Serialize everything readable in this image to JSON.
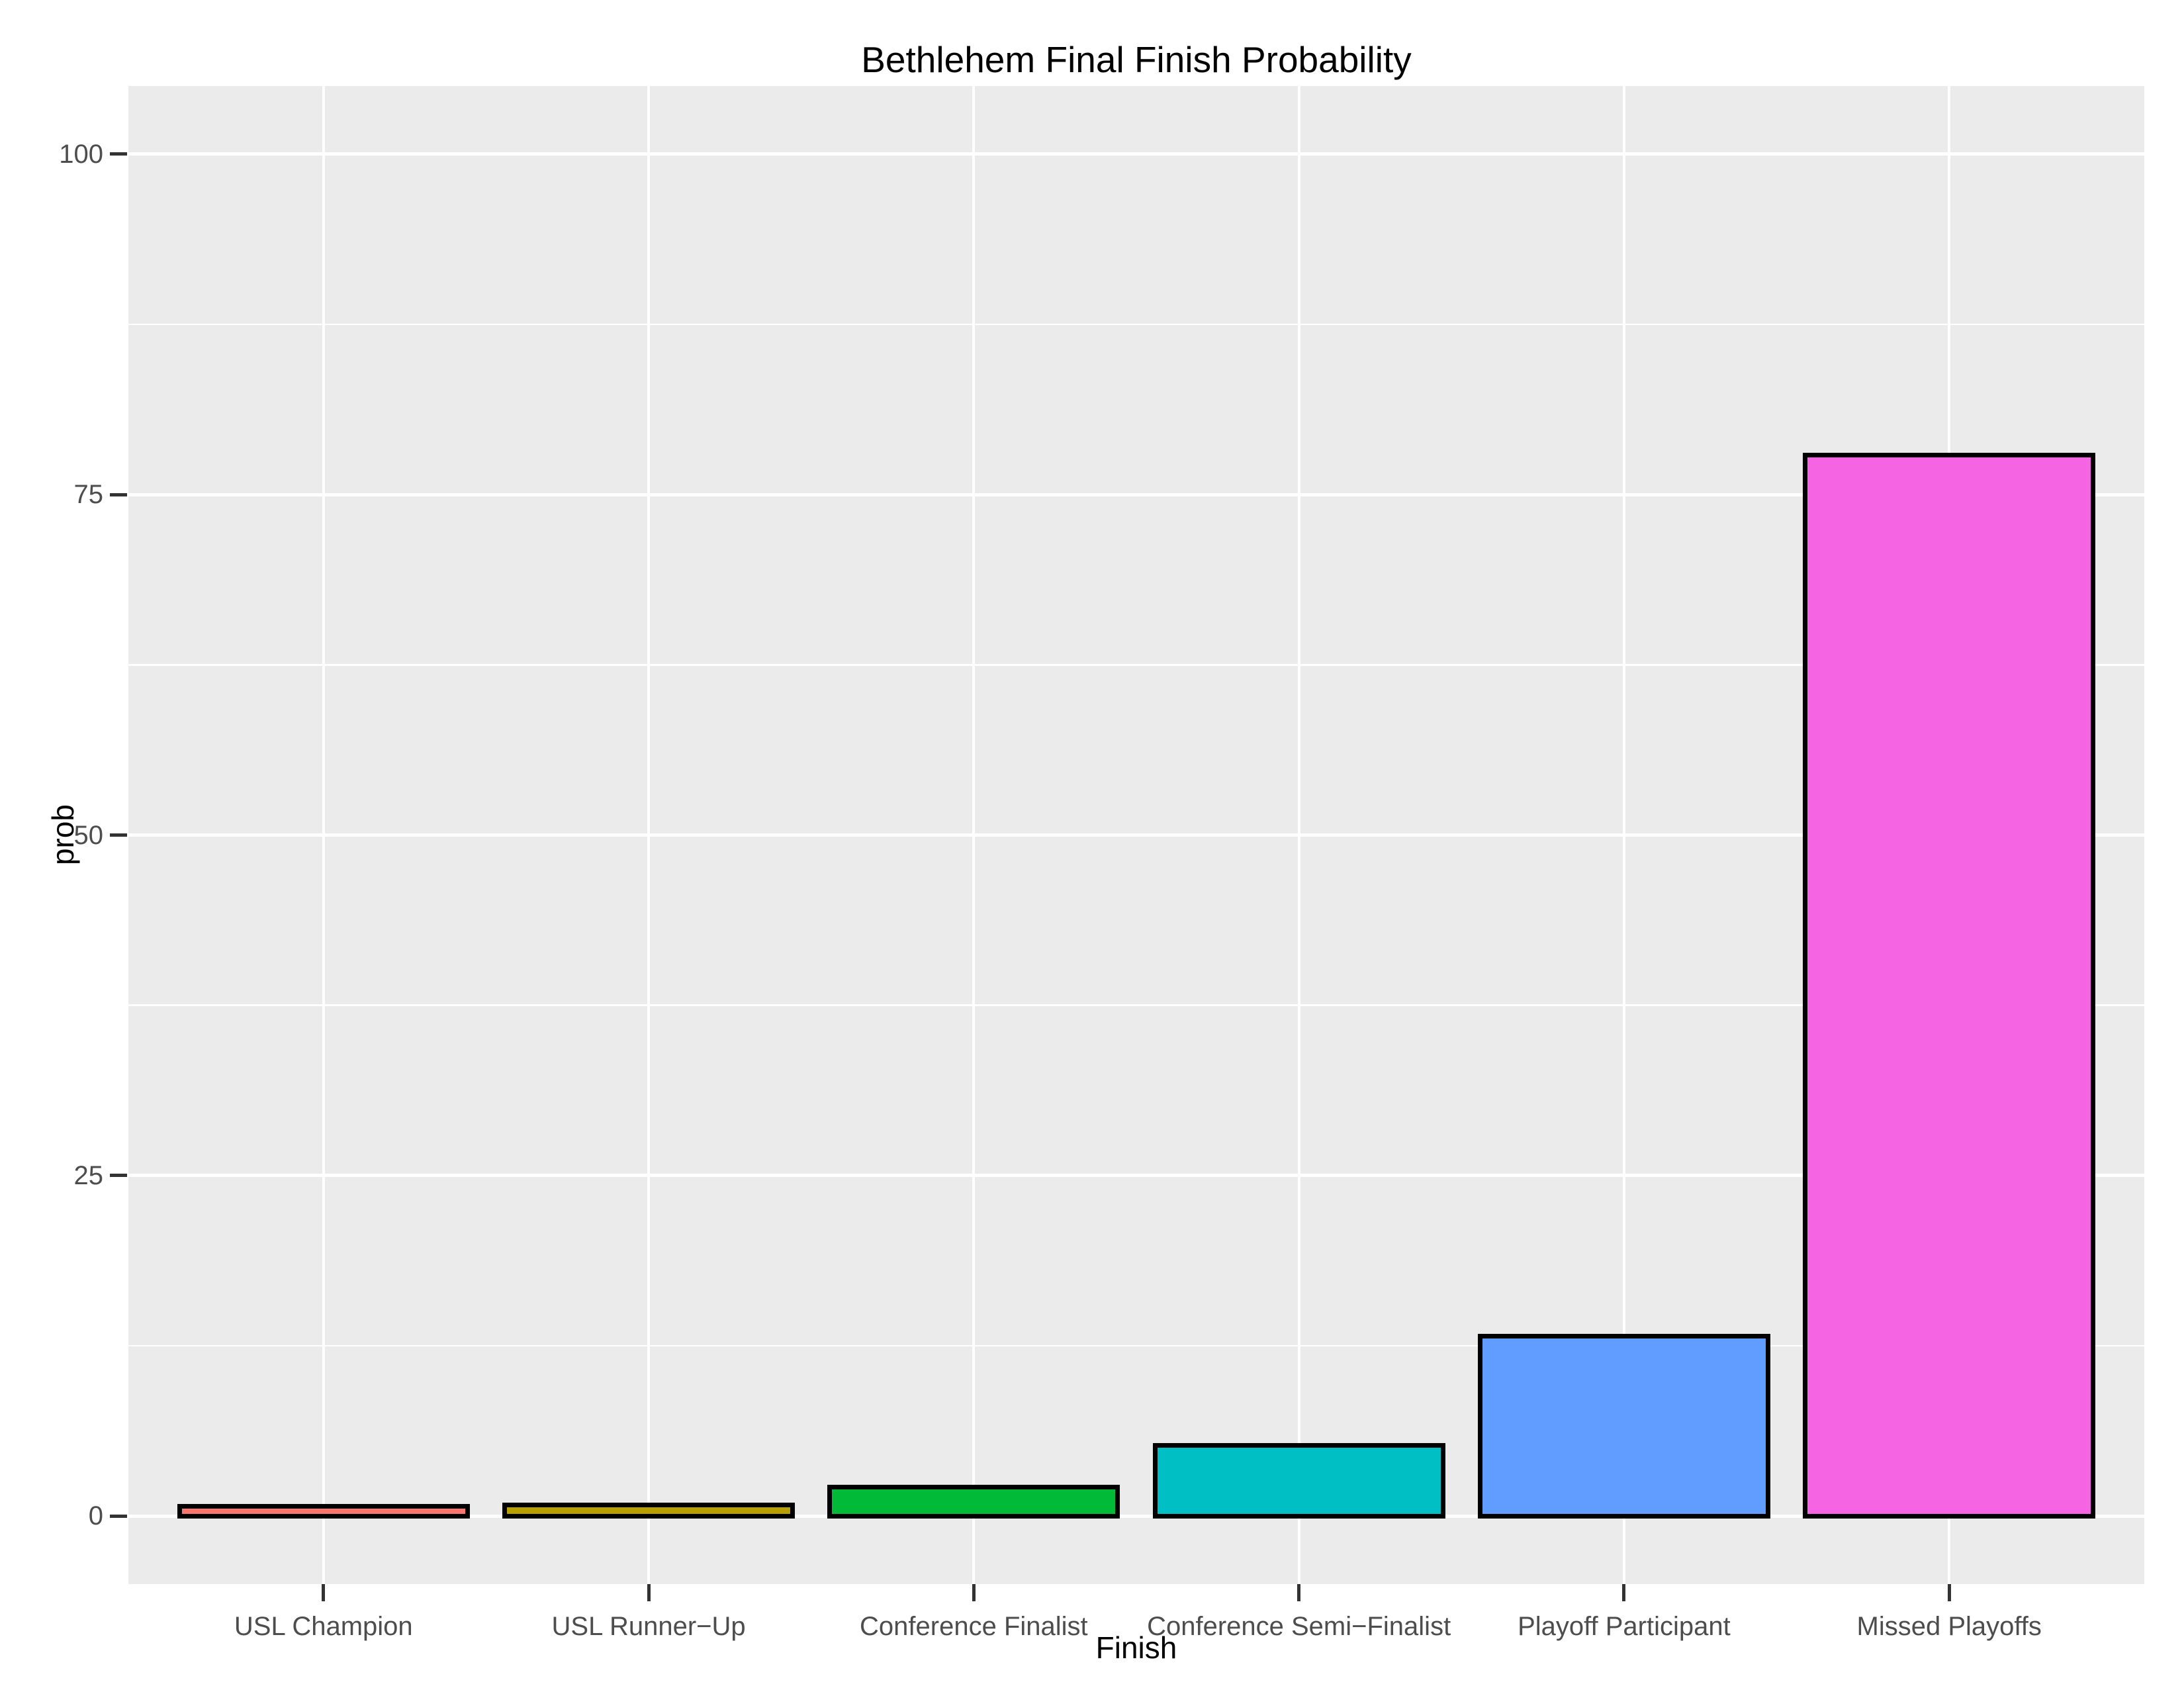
{
  "title": "Bethlehem Final Finish Probability",
  "chart_data": {
    "type": "bar",
    "title": "Bethlehem Final Finish Probability",
    "xlabel": "Finish",
    "ylabel": "prob",
    "categories": [
      "USL Champion",
      "USL Runner−Up",
      "Conference Finalist",
      "Conference Semi−Finalist",
      "Playoff Participant",
      "Missed Playoffs"
    ],
    "values": [
      0.7,
      0.8,
      2.1,
      5.2,
      13.2,
      77.9
    ],
    "bar_colors": [
      "#F8766D",
      "#B79F00",
      "#00BA38",
      "#00BFC4",
      "#619CFF",
      "#F564E2"
    ],
    "bar_border_color": "#000000",
    "ylim": [
      -5,
      105
    ],
    "y_major_ticks": [
      0,
      25,
      50,
      75,
      100
    ],
    "y_minor_ticks": [
      12.5,
      37.5,
      62.5,
      87.5
    ],
    "grid": true,
    "legend_position": "none",
    "panel_background": "#EBEBEB",
    "gridline_color": "#FFFFFF",
    "tick_label_color": "#4D4D4D",
    "tick_mark_color": "#333333",
    "title_color": "#000000"
  }
}
